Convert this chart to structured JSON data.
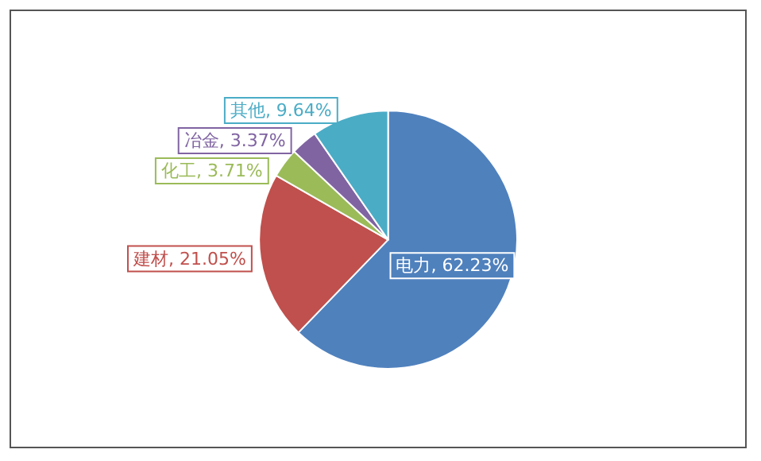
{
  "chart_data": {
    "type": "pie",
    "categories": [
      "电力",
      "建材",
      "化工",
      "冶金",
      "其他"
    ],
    "values": [
      62.23,
      21.05,
      3.71,
      3.37,
      9.64
    ],
    "value_labels": [
      "62.23%",
      "21.05%",
      "3.71%",
      "3.37%",
      "9.64%"
    ],
    "colors": [
      "#4f81bd",
      "#c0504d",
      "#9bbb59",
      "#8064a2",
      "#4bacc6"
    ],
    "legend": false
  }
}
